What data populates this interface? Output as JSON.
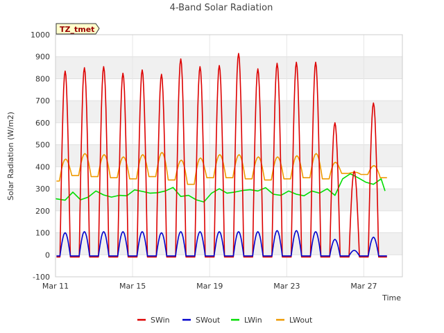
{
  "chart_data": {
    "type": "line",
    "title": "4-Band Solar Radiation",
    "xlabel": "Time",
    "ylabel": "Solar Radiation (W/m2)",
    "badge": "TZ_tmet",
    "ylim": [
      -100,
      1000
    ],
    "yticks": [
      -100,
      0,
      100,
      200,
      300,
      400,
      500,
      600,
      700,
      800,
      900,
      1000
    ],
    "xlim_days": [
      11,
      29
    ],
    "xticks": [
      {
        "day": 11,
        "label": "Mar 11"
      },
      {
        "day": 15,
        "label": "Mar 15"
      },
      {
        "day": 19,
        "label": "Mar 19"
      },
      {
        "day": 23,
        "label": "Mar 23"
      },
      {
        "day": 27,
        "label": "Mar 27"
      }
    ],
    "grid": "horizontal-bands",
    "legend_position": "bottom",
    "series": [
      {
        "name": "SWin",
        "color": "#dd0000",
        "daily_peaks": [
          {
            "day": 11.5,
            "value": 835
          },
          {
            "day": 12.5,
            "value": 850
          },
          {
            "day": 13.5,
            "value": 855
          },
          {
            "day": 14.5,
            "value": 825
          },
          {
            "day": 15.5,
            "value": 840
          },
          {
            "day": 16.5,
            "value": 820
          },
          {
            "day": 17.5,
            "value": 890
          },
          {
            "day": 18.5,
            "value": 855
          },
          {
            "day": 19.5,
            "value": 860
          },
          {
            "day": 20.5,
            "value": 915
          },
          {
            "day": 21.5,
            "value": 845
          },
          {
            "day": 22.5,
            "value": 870
          },
          {
            "day": 23.5,
            "value": 875
          },
          {
            "day": 24.5,
            "value": 875
          },
          {
            "day": 25.5,
            "value": 600
          },
          {
            "day": 26.5,
            "value": 380
          },
          {
            "day": 27.5,
            "value": 690
          }
        ],
        "night_value": -10
      },
      {
        "name": "SWout",
        "color": "#0000cc",
        "daily_peaks": [
          {
            "day": 11.5,
            "value": 100
          },
          {
            "day": 12.5,
            "value": 105
          },
          {
            "day": 13.5,
            "value": 105
          },
          {
            "day": 14.5,
            "value": 105
          },
          {
            "day": 15.5,
            "value": 105
          },
          {
            "day": 16.5,
            "value": 100
          },
          {
            "day": 17.5,
            "value": 105
          },
          {
            "day": 18.5,
            "value": 105
          },
          {
            "day": 19.5,
            "value": 105
          },
          {
            "day": 20.5,
            "value": 105
          },
          {
            "day": 21.5,
            "value": 105
          },
          {
            "day": 22.5,
            "value": 110
          },
          {
            "day": 23.5,
            "value": 110
          },
          {
            "day": 24.5,
            "value": 105
          },
          {
            "day": 25.5,
            "value": 70
          },
          {
            "day": 26.5,
            "value": 20
          },
          {
            "day": 27.5,
            "value": 80
          }
        ],
        "night_value": -5
      },
      {
        "name": "LWin",
        "color": "#00dd00",
        "x": [
          11.0,
          11.5,
          11.9,
          12.3,
          12.7,
          13.1,
          13.5,
          13.9,
          14.3,
          14.7,
          15.1,
          15.5,
          15.9,
          16.3,
          16.7,
          17.1,
          17.5,
          17.9,
          18.3,
          18.7,
          19.1,
          19.5,
          19.9,
          20.3,
          20.7,
          21.1,
          21.5,
          21.9,
          22.3,
          22.7,
          23.1,
          23.5,
          23.9,
          24.3,
          24.7,
          25.1,
          25.5,
          25.9,
          26.3,
          26.7,
          27.1,
          27.5,
          27.9,
          28.1
        ],
        "y": [
          255,
          248,
          285,
          250,
          262,
          290,
          272,
          262,
          270,
          268,
          295,
          288,
          280,
          282,
          290,
          306,
          265,
          270,
          250,
          240,
          280,
          300,
          280,
          285,
          292,
          296,
          290,
          305,
          275,
          270,
          290,
          275,
          268,
          290,
          280,
          300,
          270,
          345,
          368,
          350,
          330,
          320,
          345,
          290
        ]
      },
      {
        "name": "LWout",
        "color": "#ee9900",
        "daily_peaks": [
          {
            "day": 11.5,
            "value": 435
          },
          {
            "day": 12.5,
            "value": 460
          },
          {
            "day": 13.5,
            "value": 455
          },
          {
            "day": 14.5,
            "value": 445
          },
          {
            "day": 15.5,
            "value": 455
          },
          {
            "day": 16.5,
            "value": 465
          },
          {
            "day": 17.5,
            "value": 430
          },
          {
            "day": 18.5,
            "value": 440
          },
          {
            "day": 19.5,
            "value": 455
          },
          {
            "day": 20.5,
            "value": 455
          },
          {
            "day": 21.5,
            "value": 445
          },
          {
            "day": 22.5,
            "value": 445
          },
          {
            "day": 23.5,
            "value": 450
          },
          {
            "day": 24.5,
            "value": 460
          },
          {
            "day": 25.5,
            "value": 420
          },
          {
            "day": 26.5,
            "value": 375
          },
          {
            "day": 27.5,
            "value": 405
          }
        ],
        "night_values": [
          335,
          360,
          355,
          350,
          345,
          355,
          340,
          320,
          350,
          350,
          345,
          340,
          345,
          350,
          345,
          370,
          365,
          350
        ]
      }
    ]
  }
}
